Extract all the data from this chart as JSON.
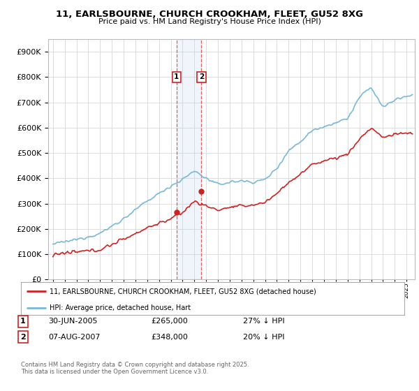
{
  "title_line1": "11, EARLSBOURNE, CHURCH CROOKHAM, FLEET, GU52 8XG",
  "title_line2": "Price paid vs. HM Land Registry's House Price Index (HPI)",
  "background_color": "#ffffff",
  "plot_bg_color": "#ffffff",
  "grid_color": "#dddddd",
  "hpi_color": "#7ab8d8",
  "price_color": "#cc2222",
  "sale1_x": 2005.49,
  "sale2_x": 2007.6,
  "sale1_price": 265000,
  "sale2_price": 348000,
  "sale1_date": "30-JUN-2005",
  "sale2_date": "07-AUG-2007",
  "sale1_note": "27% ↓ HPI",
  "sale2_note": "20% ↓ HPI",
  "legend_label1": "11, EARLSBOURNE, CHURCH CROOKHAM, FLEET, GU52 8XG (detached house)",
  "legend_label2": "HPI: Average price, detached house, Hart",
  "footer": "Contains HM Land Registry data © Crown copyright and database right 2025.\nThis data is licensed under the Open Government Licence v3.0.",
  "ylim_min": 0,
  "ylim_max": 950000,
  "hpi_key_years": [
    1995,
    1997,
    1999,
    2001,
    2003,
    2005,
    2006,
    2007,
    2008,
    2009,
    2010,
    2011,
    2012,
    2013,
    2014,
    2015,
    2016,
    2017,
    2018,
    2019,
    2020,
    2021,
    2022,
    2023,
    2024,
    2025.5
  ],
  "hpi_key_vals": [
    140000,
    158000,
    182000,
    240000,
    310000,
    370000,
    395000,
    430000,
    400000,
    375000,
    385000,
    390000,
    385000,
    395000,
    440000,
    510000,
    545000,
    590000,
    605000,
    620000,
    635000,
    720000,
    760000,
    680000,
    710000,
    730000
  ],
  "price_key_years": [
    1995,
    1997,
    1999,
    2001,
    2003,
    2005,
    2006,
    2007,
    2008,
    2009,
    2010,
    2011,
    2012,
    2013,
    2014,
    2015,
    2016,
    2017,
    2018,
    2019,
    2020,
    2021,
    2022,
    2023,
    2024,
    2025.5
  ],
  "price_key_vals": [
    100000,
    108000,
    118000,
    160000,
    205000,
    240000,
    265000,
    310000,
    290000,
    275000,
    285000,
    290000,
    295000,
    305000,
    340000,
    385000,
    415000,
    455000,
    470000,
    480000,
    495000,
    555000,
    600000,
    560000,
    575000,
    580000
  ]
}
